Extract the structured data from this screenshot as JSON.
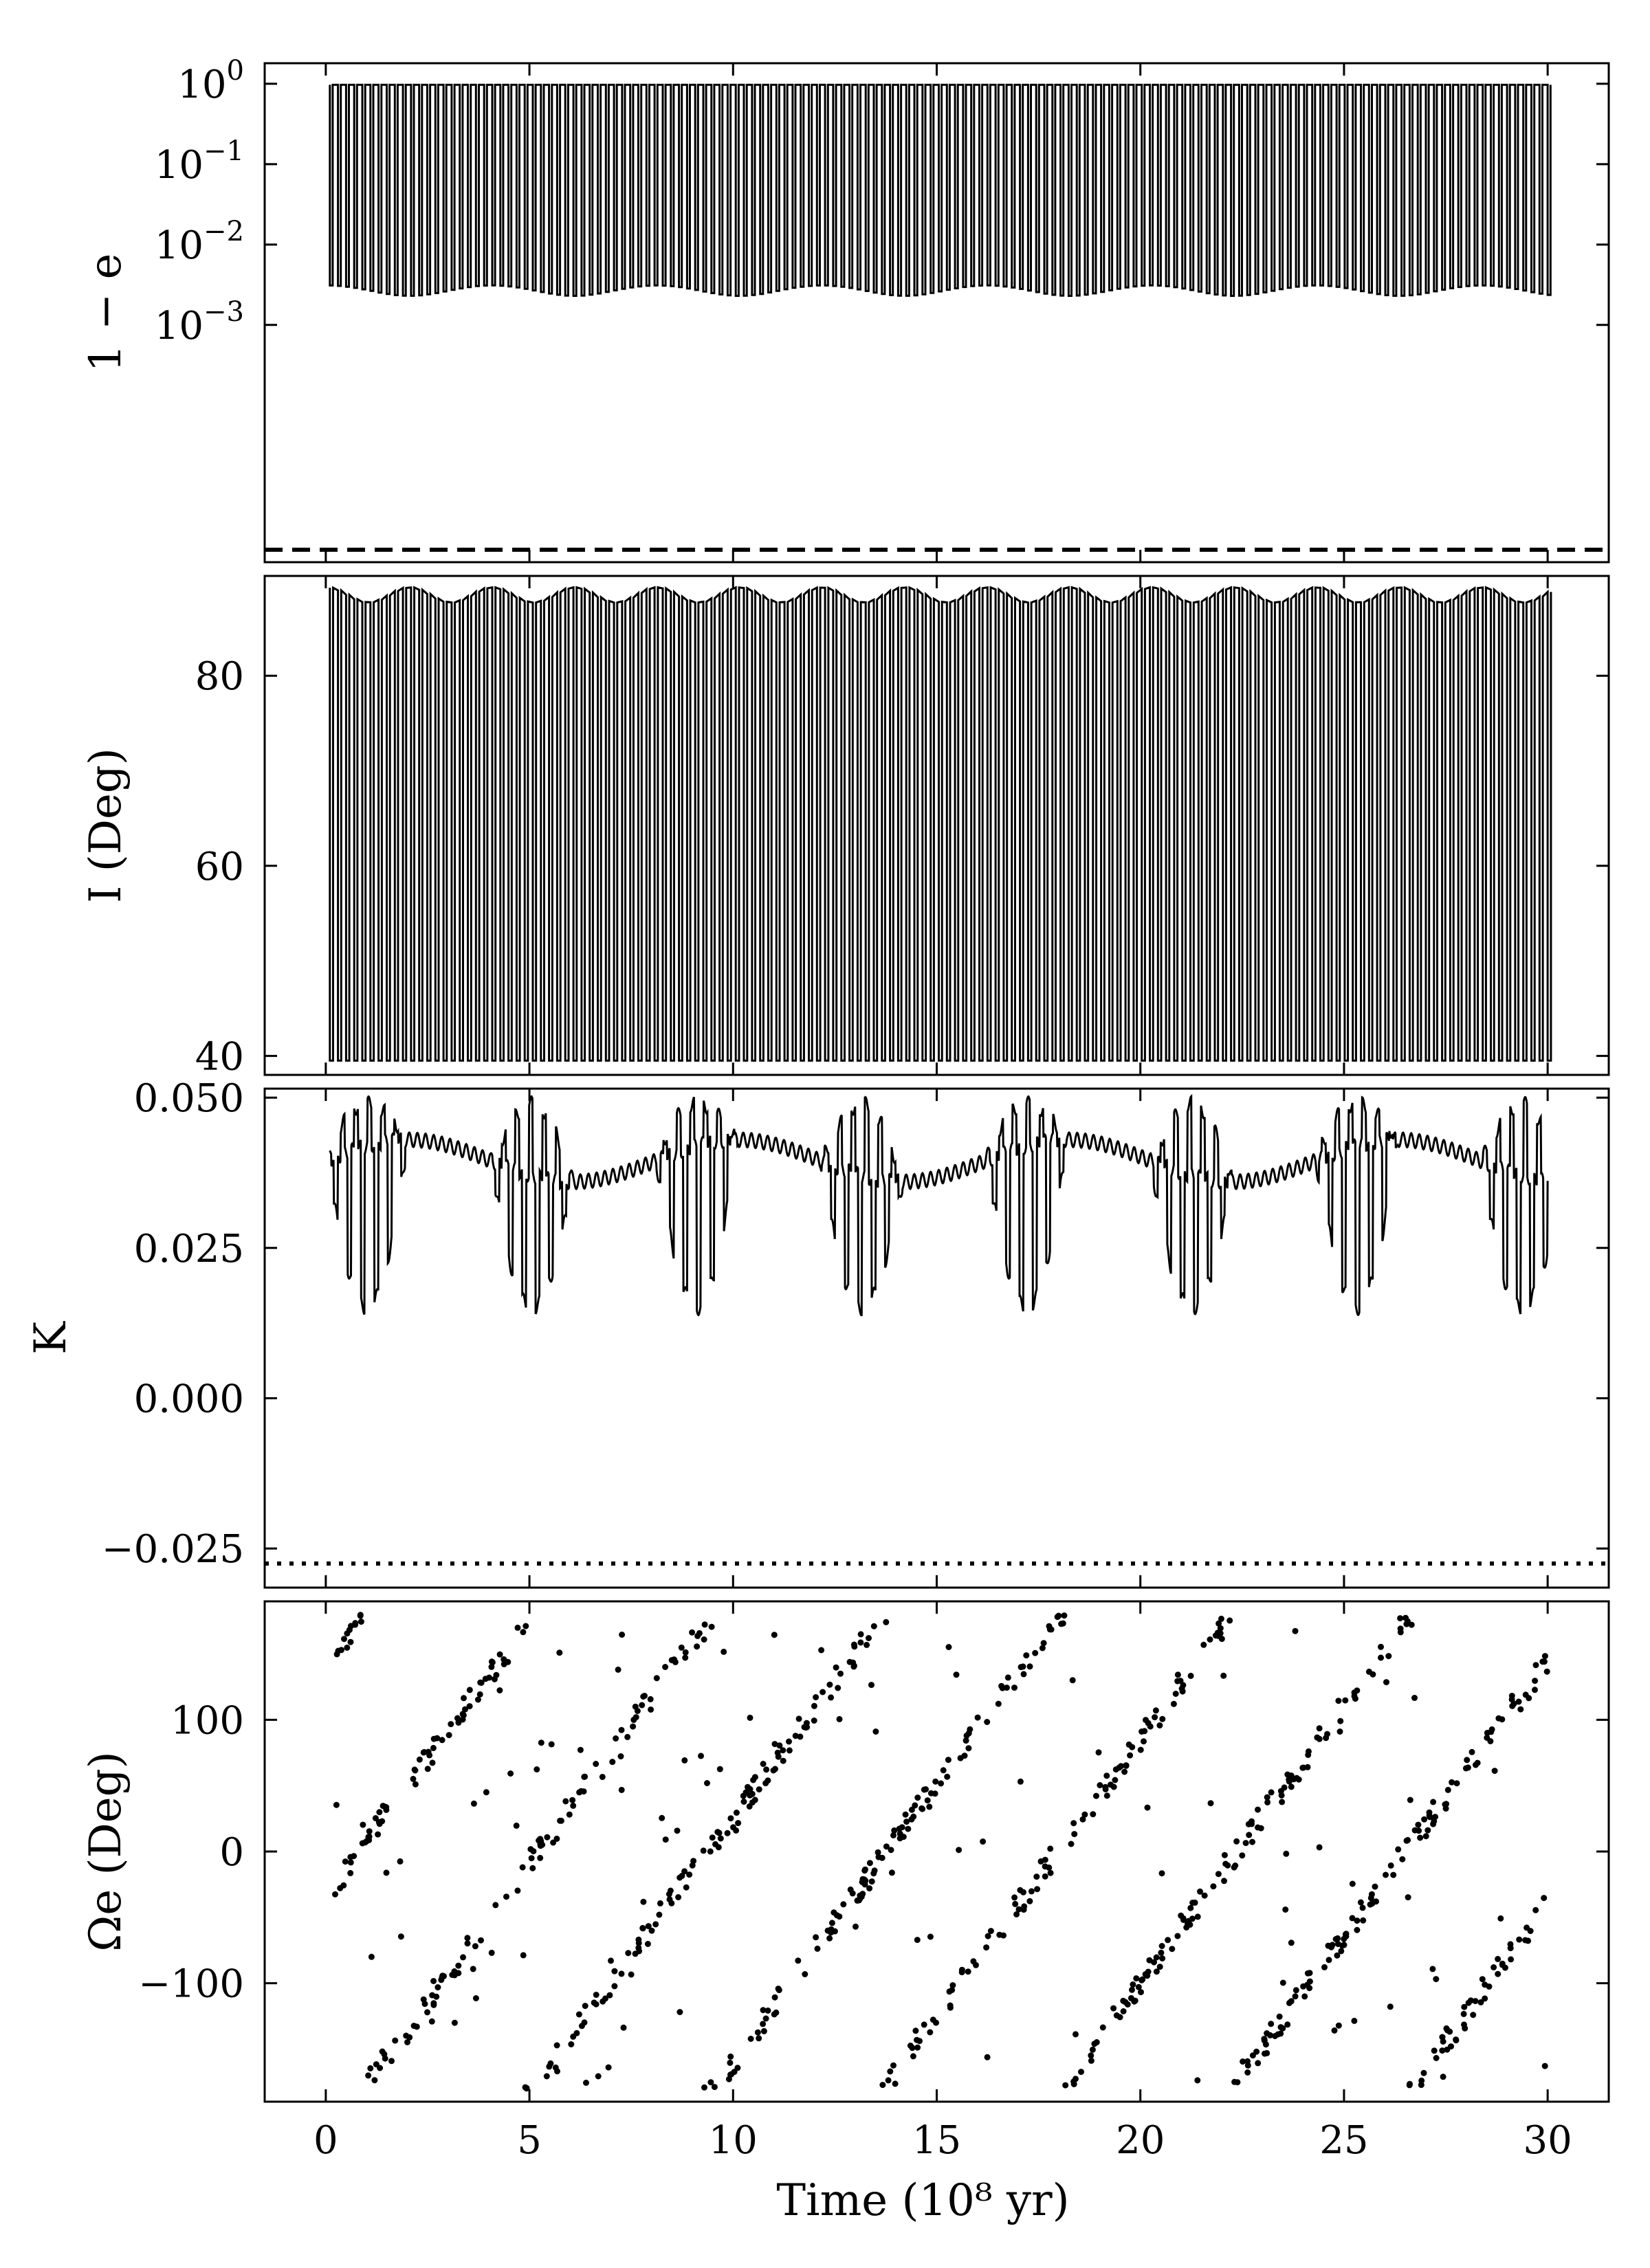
{
  "chart_data": [
    {
      "type": "line",
      "panel": "eccentricity",
      "ylabel": "1 − e",
      "yscale": "log",
      "ylim": [
        1.12e-06,
        1.8
      ],
      "yticks": [
        {
          "value": 1,
          "base": "10",
          "exp": "0"
        },
        {
          "value": 0.1,
          "base": "10",
          "exp": "−1"
        },
        {
          "value": 0.01,
          "base": "10",
          "exp": "−2"
        },
        {
          "value": 0.001,
          "base": "10",
          "exp": "−3"
        }
      ],
      "series": [
        {
          "x_start": 0.1,
          "x_end": 30,
          "cycles": 150,
          "y_max": 0.97,
          "y_min_range": [
            0.0023,
            0.0031
          ],
          "modulation_period": 4.05
        }
      ],
      "reference_line": {
        "y": 1.6e-06,
        "style": "dashed"
      }
    },
    {
      "type": "line",
      "panel": "inclination",
      "ylabel": "I (Deg)",
      "ylim": [
        38.0,
        90.5
      ],
      "yticks": [
        {
          "value": 40,
          "label": "40"
        },
        {
          "value": 60,
          "label": "60"
        },
        {
          "value": 80,
          "label": "80"
        }
      ],
      "series": [
        {
          "x_start": 0.1,
          "x_end": 30,
          "cycles": 150,
          "y_max_range": [
            87.7,
            89.3
          ],
          "y_min": 39.5,
          "modulation_period": 4.05
        }
      ]
    },
    {
      "type": "line",
      "panel": "K",
      "ylabel": "K",
      "ylim": [
        -0.0315,
        0.0515
      ],
      "yticks": [
        {
          "value": -0.025,
          "label": "−0.025"
        },
        {
          "value": 0.0,
          "label": "0.000"
        },
        {
          "value": 0.025,
          "label": "0.025"
        },
        {
          "value": 0.05,
          "label": "0.050"
        }
      ],
      "series": [
        {
          "x_start": 0.1,
          "x_end": 30,
          "baseline_range": [
            0.036,
            0.043
          ],
          "peak_max": 0.049,
          "trough_min": 0.015,
          "modulation_period": 4.05
        }
      ],
      "reference_line": {
        "y": -0.0275,
        "style": "dotted"
      }
    },
    {
      "type": "scatter",
      "panel": "node",
      "ylabel": "Ωe (Deg)",
      "ylim": [
        -190,
        190
      ],
      "yticks": [
        {
          "value": -100,
          "label": "−100"
        },
        {
          "value": 0,
          "label": "0"
        },
        {
          "value": 100,
          "label": "100"
        }
      ],
      "series": [
        {
          "x_start": 0.1,
          "x_end": 30,
          "drift_deg_per_unit": 42,
          "branches": [
            {
              "phase_deg": 145
            },
            {
              "phase_deg": -30
            }
          ],
          "period": 8.6
        }
      ]
    }
  ],
  "x_axis": {
    "xlim": [
      -1.5,
      31.5
    ],
    "xticks": [
      {
        "value": 0,
        "label": "0"
      },
      {
        "value": 5,
        "label": "5"
      },
      {
        "value": 10,
        "label": "10"
      },
      {
        "value": 15,
        "label": "15"
      },
      {
        "value": 20,
        "label": "20"
      },
      {
        "value": 25,
        "label": "25"
      },
      {
        "value": 30,
        "label": "30"
      }
    ],
    "xlabel": "Time (10⁸ yr)"
  }
}
